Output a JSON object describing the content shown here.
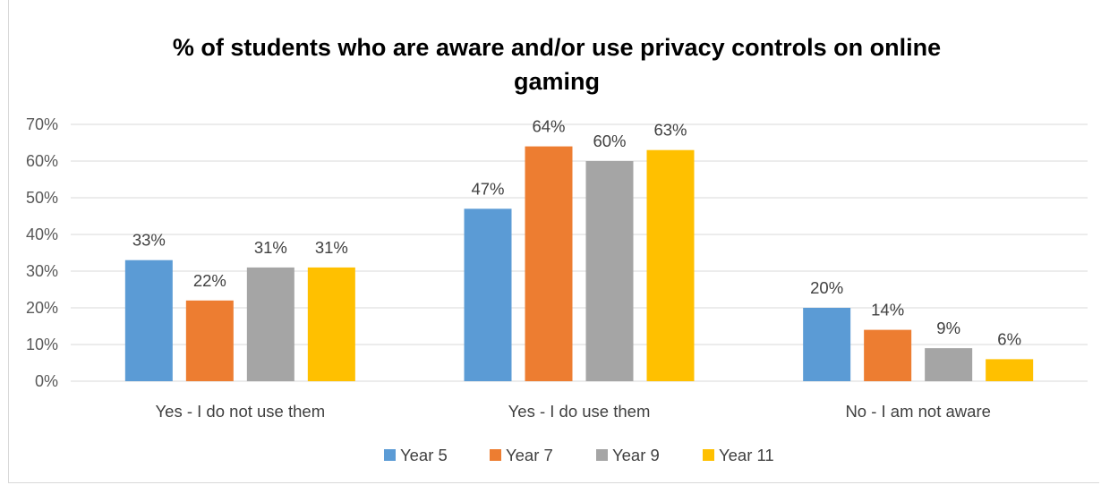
{
  "chart_data": {
    "type": "bar",
    "title_line1": "% of students who are aware and/or use privacy controls on online",
    "title_line2": "gaming",
    "xlabel": "",
    "ylabel": "",
    "ylim": [
      0,
      70
    ],
    "yticks": [
      "0%",
      "10%",
      "20%",
      "30%",
      "40%",
      "50%",
      "60%",
      "70%"
    ],
    "grid": true,
    "legend_position": "bottom",
    "categories": [
      "Yes - I do not use them",
      "Yes - I do use them",
      "No - I am not aware"
    ],
    "series": [
      {
        "name": "Year 5",
        "color": "#5b9bd5",
        "values": [
          33,
          47,
          20
        ],
        "labels": [
          "33%",
          "47%",
          "20%"
        ]
      },
      {
        "name": "Year 7",
        "color": "#ed7d31",
        "values": [
          22,
          64,
          14
        ],
        "labels": [
          "22%",
          "64%",
          "14%"
        ]
      },
      {
        "name": "Year 9",
        "color": "#a5a5a5",
        "values": [
          31,
          60,
          9
        ],
        "labels": [
          "31%",
          "60%",
          "9%"
        ]
      },
      {
        "name": "Year 11",
        "color": "#ffc000",
        "values": [
          31,
          63,
          6
        ],
        "labels": [
          "31%",
          "63%",
          "6%"
        ]
      }
    ]
  }
}
